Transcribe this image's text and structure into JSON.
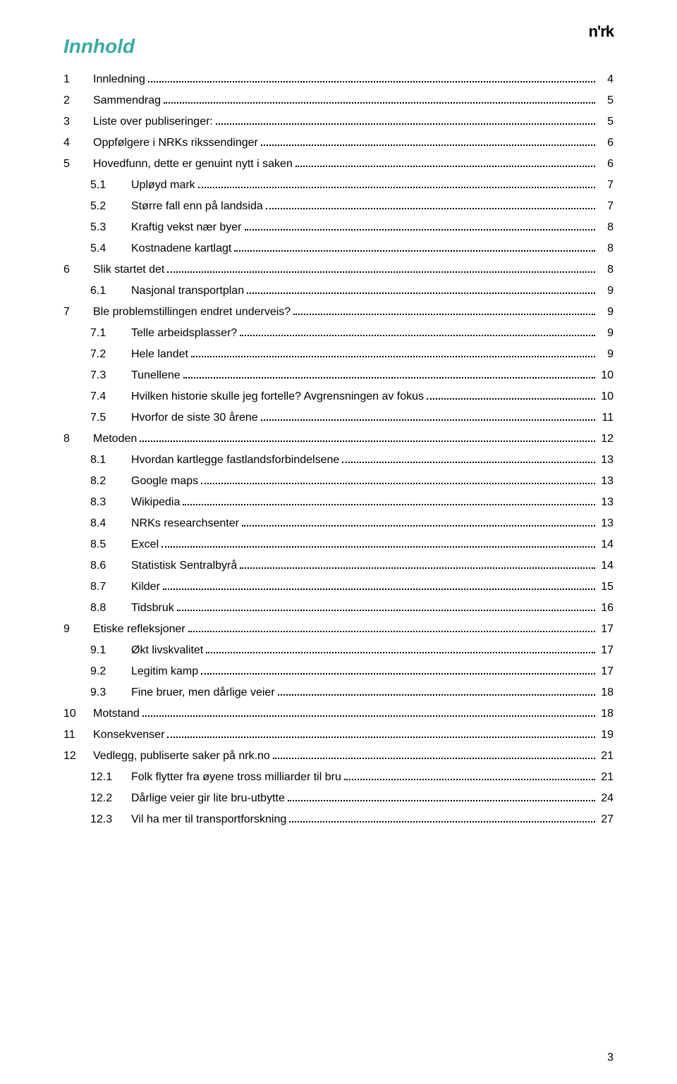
{
  "logo": "n'rk",
  "title": "Innhold",
  "page_number": "3",
  "colors": {
    "title": "#3aa9a0",
    "text": "#000000",
    "background": "#ffffff"
  },
  "toc": [
    {
      "indent": 0,
      "num": "1",
      "label": "Innledning",
      "page": "4"
    },
    {
      "indent": 0,
      "num": "2",
      "label": "Sammendrag",
      "page": "5"
    },
    {
      "indent": 0,
      "num": "3",
      "label": "Liste over publiseringer:",
      "page": "5"
    },
    {
      "indent": 0,
      "num": "4",
      "label": "Oppfølgere i NRKs rikssendinger",
      "page": "6"
    },
    {
      "indent": 0,
      "num": "5",
      "label": "Hovedfunn, dette er genuint nytt i saken",
      "page": "6"
    },
    {
      "indent": 1,
      "num": "5.1",
      "label": "Upløyd mark",
      "page": "7"
    },
    {
      "indent": 1,
      "num": "5.2",
      "label": "Større fall enn på landsida",
      "page": "7"
    },
    {
      "indent": 1,
      "num": "5.3",
      "label": "Kraftig vekst nær byer",
      "page": "8"
    },
    {
      "indent": 1,
      "num": "5.4",
      "label": "Kostnadene kartlagt",
      "page": "8"
    },
    {
      "indent": 0,
      "num": "6",
      "label": "Slik startet det",
      "page": "8"
    },
    {
      "indent": 1,
      "num": "6.1",
      "label": "Nasjonal transportplan",
      "page": "9"
    },
    {
      "indent": 0,
      "num": "7",
      "label": "Ble problemstillingen endret underveis?",
      "page": "9"
    },
    {
      "indent": 1,
      "num": "7.1",
      "label": "Telle arbeidsplasser?",
      "page": "9"
    },
    {
      "indent": 1,
      "num": "7.2",
      "label": "Hele landet",
      "page": "9"
    },
    {
      "indent": 1,
      "num": "7.3",
      "label": "Tunellene",
      "page": "10"
    },
    {
      "indent": 1,
      "num": "7.4",
      "label": "Hvilken historie skulle jeg fortelle? Avgrensningen av fokus",
      "page": "10"
    },
    {
      "indent": 1,
      "num": "7.5",
      "label": "Hvorfor de siste 30 årene",
      "page": "11"
    },
    {
      "indent": 0,
      "num": "8",
      "label": "Metoden",
      "page": "12"
    },
    {
      "indent": 1,
      "num": "8.1",
      "label": "Hvordan kartlegge fastlandsforbindelsene",
      "page": "13"
    },
    {
      "indent": 1,
      "num": "8.2",
      "label": "Google maps",
      "page": "13"
    },
    {
      "indent": 1,
      "num": "8.3",
      "label": "Wikipedia",
      "page": "13"
    },
    {
      "indent": 1,
      "num": "8.4",
      "label": "NRKs researchsenter",
      "page": "13"
    },
    {
      "indent": 1,
      "num": "8.5",
      "label": "Excel",
      "page": "14"
    },
    {
      "indent": 1,
      "num": "8.6",
      "label": "Statistisk Sentralbyrå",
      "page": "14"
    },
    {
      "indent": 1,
      "num": "8.7",
      "label": "Kilder",
      "page": "15"
    },
    {
      "indent": 1,
      "num": "8.8",
      "label": "Tidsbruk",
      "page": "16"
    },
    {
      "indent": 0,
      "num": "9",
      "label": "Etiske refleksjoner",
      "page": "17"
    },
    {
      "indent": 1,
      "num": "9.1",
      "label": "Økt livskvalitet",
      "page": "17"
    },
    {
      "indent": 1,
      "num": "9.2",
      "label": "Legitim kamp",
      "page": "17"
    },
    {
      "indent": 1,
      "num": "9.3",
      "label": "Fine bruer, men dårlige veier",
      "page": "18"
    },
    {
      "indent": 0,
      "num": "10",
      "label": "Motstand",
      "page": "18"
    },
    {
      "indent": 0,
      "num": "11",
      "label": "Konsekvenser",
      "page": "19"
    },
    {
      "indent": 0,
      "num": "12",
      "label": "Vedlegg, publiserte saker på nrk.no",
      "page": "21"
    },
    {
      "indent": 1,
      "num": "12.1",
      "label": "Folk flytter fra øyene tross milliarder til bru",
      "page": "21"
    },
    {
      "indent": 1,
      "num": "12.2",
      "label": "Dårlige veier gir lite bru-utbytte",
      "page": "24"
    },
    {
      "indent": 1,
      "num": "12.3",
      "label": "Vil ha mer til transportforskning",
      "page": "27"
    }
  ]
}
